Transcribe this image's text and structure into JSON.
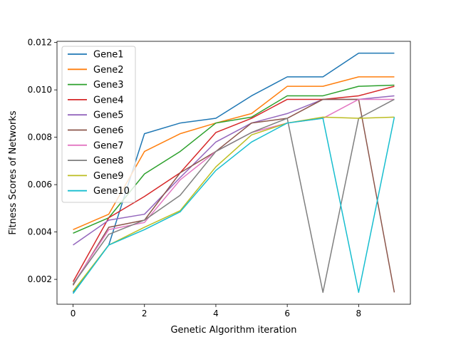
{
  "chart_data": {
    "type": "line",
    "title": "",
    "xlabel": "Genetic Algorithm iteration",
    "ylabel": "Fitness Scores of Networks",
    "xlim": [
      -0.45,
      9.45
    ],
    "ylim": [
      0.00095,
      0.01205
    ],
    "x": [
      0,
      1,
      2,
      3,
      4,
      5,
      6,
      7,
      8,
      9
    ],
    "xticks": [
      0,
      2,
      4,
      6,
      8
    ],
    "xtick_labels": [
      "0",
      "2",
      "4",
      "6",
      "8"
    ],
    "yticks": [
      0.002,
      0.004,
      0.006,
      0.008,
      0.01,
      0.012
    ],
    "ytick_labels": [
      "0.002",
      "0.004",
      "0.006",
      "0.008",
      "0.010",
      "0.012"
    ],
    "legend_position": "top-left",
    "grid": false,
    "series": [
      {
        "name": "Gene1",
        "color": "#1f77b4",
        "values": [
          0.00145,
          0.00345,
          0.00815,
          0.0086,
          0.0088,
          0.00975,
          0.01055,
          0.01055,
          0.01155,
          0.01155
        ]
      },
      {
        "name": "Gene2",
        "color": "#ff7f0e",
        "values": [
          0.0041,
          0.00475,
          0.0074,
          0.00815,
          0.0086,
          0.009,
          0.01015,
          0.01015,
          0.01055,
          0.01055
        ]
      },
      {
        "name": "Gene3",
        "color": "#2ca02c",
        "values": [
          0.00395,
          0.0046,
          0.00645,
          0.0074,
          0.0086,
          0.00885,
          0.00975,
          0.00975,
          0.01015,
          0.0102
        ]
      },
      {
        "name": "Gene4",
        "color": "#d62728",
        "values": [
          0.0019,
          0.0046,
          0.0055,
          0.0065,
          0.0082,
          0.0088,
          0.0096,
          0.0096,
          0.00975,
          0.01015
        ]
      },
      {
        "name": "Gene5",
        "color": "#9467bd",
        "values": [
          0.00345,
          0.0045,
          0.00475,
          0.0063,
          0.0078,
          0.0086,
          0.009,
          0.0096,
          0.0096,
          0.00975
        ]
      },
      {
        "name": "Gene6",
        "color": "#8c564b",
        "values": [
          0.00175,
          0.0042,
          0.0045,
          0.0065,
          0.0074,
          0.0086,
          0.0088,
          0.0096,
          0.0096,
          0.00145
        ]
      },
      {
        "name": "Gene7",
        "color": "#e377c2",
        "values": [
          0.0018,
          0.0041,
          0.0044,
          0.0062,
          0.0074,
          0.0082,
          0.0086,
          0.0088,
          0.0096,
          0.0096
        ]
      },
      {
        "name": "Gene8",
        "color": "#7f7f7f",
        "values": [
          0.0018,
          0.0039,
          0.0045,
          0.00555,
          0.0074,
          0.0082,
          0.0088,
          0.00145,
          0.0088,
          0.0096
        ]
      },
      {
        "name": "Gene9",
        "color": "#bcbd22",
        "values": [
          0.0015,
          0.00345,
          0.0042,
          0.0049,
          0.00675,
          0.0081,
          0.0086,
          0.00885,
          0.0088,
          0.00885
        ]
      },
      {
        "name": "Gene10",
        "color": "#17becf",
        "values": [
          0.0014,
          0.00345,
          0.0041,
          0.00485,
          0.0066,
          0.0078,
          0.0086,
          0.0088,
          0.00145,
          0.00885
        ]
      }
    ]
  }
}
